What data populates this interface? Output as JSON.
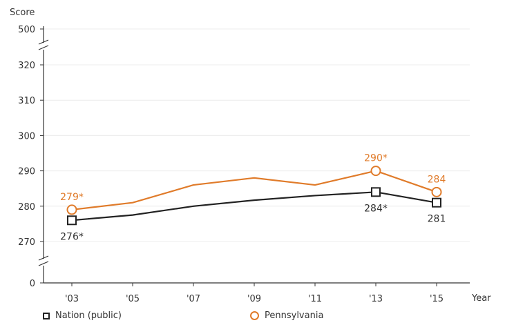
{
  "chart_data": {
    "type": "line",
    "ylabel": "Score",
    "xlabel": "Year",
    "categories": [
      "'03",
      "'05",
      "'07",
      "'09",
      "'11",
      "'13",
      "'15"
    ],
    "y_ticks": [
      {
        "label": "500",
        "value": 500
      },
      {
        "label": "320",
        "value": 320
      },
      {
        "label": "310",
        "value": 310
      },
      {
        "label": "300",
        "value": 300
      },
      {
        "label": "290",
        "value": 290
      },
      {
        "label": "280",
        "value": 280
      },
      {
        "label": "270",
        "value": 270
      },
      {
        "label": "0",
        "value": 0
      }
    ],
    "axis_break": true,
    "ylim": [
      266,
      322
    ],
    "series": [
      {
        "name": "Nation (public)",
        "color": "#222222",
        "marker": "square",
        "values": [
          276,
          277.5,
          280,
          281.7,
          283,
          284,
          281
        ],
        "labels": [
          {
            "index": 0,
            "text": "276*"
          },
          {
            "index": 5,
            "text": "284*"
          },
          {
            "index": 6,
            "text": "281"
          }
        ]
      },
      {
        "name": "Pennsylvania",
        "color": "#e07b2a",
        "marker": "circle",
        "values": [
          279,
          281,
          286,
          288,
          286,
          290,
          284
        ],
        "labels": [
          {
            "index": 0,
            "text": "279*"
          },
          {
            "index": 5,
            "text": "290*"
          },
          {
            "index": 6,
            "text": "284"
          }
        ]
      }
    ],
    "legend_position": "bottom"
  }
}
